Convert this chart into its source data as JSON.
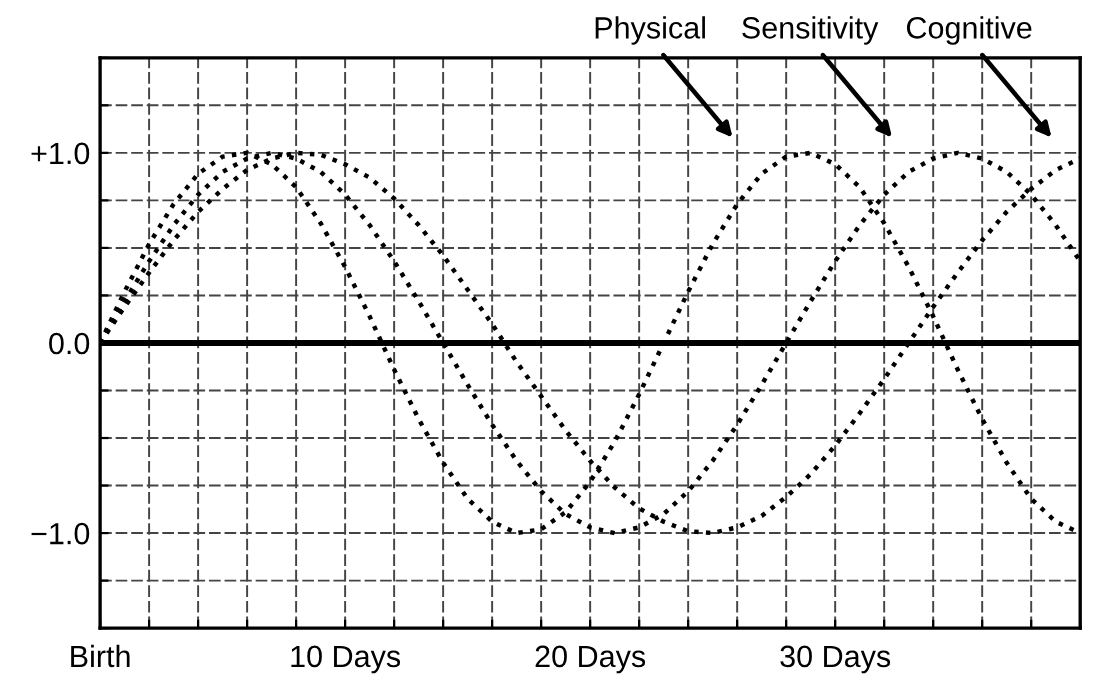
{
  "chart_data": {
    "type": "line",
    "x": [
      0,
      1,
      2,
      3,
      4,
      5,
      6,
      7,
      8,
      9,
      10,
      11,
      12,
      13,
      14,
      15,
      16,
      17,
      18,
      19,
      20,
      21,
      22,
      23,
      24,
      25,
      26,
      27,
      28,
      29,
      30,
      31,
      32,
      33,
      34,
      35,
      36,
      37,
      38,
      39,
      40
    ],
    "series": [
      {
        "color": "#000000",
        "values": [
          0,
          0.27,
          0.52,
          0.73,
          0.89,
          0.98,
          1.0,
          0.94,
          0.82,
          0.63,
          0.4,
          0.14,
          -0.14,
          -0.4,
          -0.63,
          -0.82,
          -0.94,
          -1.0,
          -0.98,
          -0.89,
          -0.73,
          -0.52,
          -0.27,
          0,
          0.27,
          0.52,
          0.73,
          0.89,
          0.98,
          1.0,
          0.94,
          0.82,
          0.63,
          0.4,
          0.14,
          -0.14,
          -0.4,
          -0.63,
          -0.82,
          -0.94,
          -1.0
        ]
      },
      {
        "color": "#000000",
        "values": [
          0,
          0.22,
          0.43,
          0.62,
          0.78,
          0.9,
          0.97,
          1.0,
          0.97,
          0.9,
          0.78,
          0.62,
          0.43,
          0.22,
          0,
          -0.22,
          -0.43,
          -0.62,
          -0.78,
          -0.9,
          -0.97,
          -1.0,
          -0.97,
          -0.9,
          -0.78,
          -0.62,
          -0.43,
          -0.22,
          0,
          0.22,
          0.43,
          0.62,
          0.78,
          0.9,
          0.97,
          1.0,
          0.97,
          0.9,
          0.78,
          0.62,
          0.43
        ]
      },
      {
        "color": "#000000",
        "values": [
          0,
          0.19,
          0.37,
          0.54,
          0.69,
          0.81,
          0.91,
          0.97,
          1.0,
          0.99,
          0.94,
          0.87,
          0.76,
          0.62,
          0.46,
          0.28,
          0.1,
          -0.1,
          -0.28,
          -0.46,
          -0.62,
          -0.76,
          -0.87,
          -0.94,
          -0.99,
          -1.0,
          -0.97,
          -0.91,
          -0.81,
          -0.69,
          -0.54,
          -0.37,
          -0.19,
          0,
          0.19,
          0.37,
          0.54,
          0.69,
          0.81,
          0.91,
          0.97
        ]
      }
    ],
    "annotations": [
      "Physical",
      "Sensitivity",
      "Cognitive"
    ],
    "xlim": [
      0,
      40
    ],
    "xticks": [
      {
        "value": 0,
        "label": "Birth"
      },
      {
        "value": 2,
        "label": null
      },
      {
        "value": 4,
        "label": null
      },
      {
        "value": 6,
        "label": null
      },
      {
        "value": 8,
        "label": null
      },
      {
        "value": 10,
        "label": "10 Days"
      },
      {
        "value": 12,
        "label": null
      },
      {
        "value": 14,
        "label": null
      },
      {
        "value": 16,
        "label": null
      },
      {
        "value": 18,
        "label": null
      },
      {
        "value": 20,
        "label": "20 Days"
      },
      {
        "value": 22,
        "label": null
      },
      {
        "value": 24,
        "label": null
      },
      {
        "value": 26,
        "label": null
      },
      {
        "value": 28,
        "label": null
      },
      {
        "value": 30,
        "label": "30 Days"
      },
      {
        "value": 32,
        "label": null
      },
      {
        "value": 34,
        "label": null
      },
      {
        "value": 36,
        "label": null
      },
      {
        "value": 38,
        "label": null
      },
      {
        "value": 40,
        "label": null
      }
    ],
    "ylim": [
      -1.5,
      1.5
    ],
    "yticks": [
      {
        "value": -1.5,
        "label": null
      },
      {
        "value": -1.25,
        "label": null
      },
      {
        "value": -1.0,
        "label": "−1.0"
      },
      {
        "value": -0.75,
        "label": null
      },
      {
        "value": -0.5,
        "label": null
      },
      {
        "value": -0.25,
        "label": null
      },
      {
        "value": 0,
        "label": "0.0"
      },
      {
        "value": 0.25,
        "label": null
      },
      {
        "value": 0.5,
        "label": null
      },
      {
        "value": 0.75,
        "label": null
      },
      {
        "value": 1.0,
        "label": "+1.0"
      },
      {
        "value": 1.25,
        "label": null
      },
      {
        "value": 1.5,
        "label": null
      }
    ],
    "ref_lines": [
      {
        "axis": "y",
        "value": 0,
        "color": "#000000"
      }
    ],
    "grid": true,
    "line_style": "dotted",
    "marker": "none"
  }
}
